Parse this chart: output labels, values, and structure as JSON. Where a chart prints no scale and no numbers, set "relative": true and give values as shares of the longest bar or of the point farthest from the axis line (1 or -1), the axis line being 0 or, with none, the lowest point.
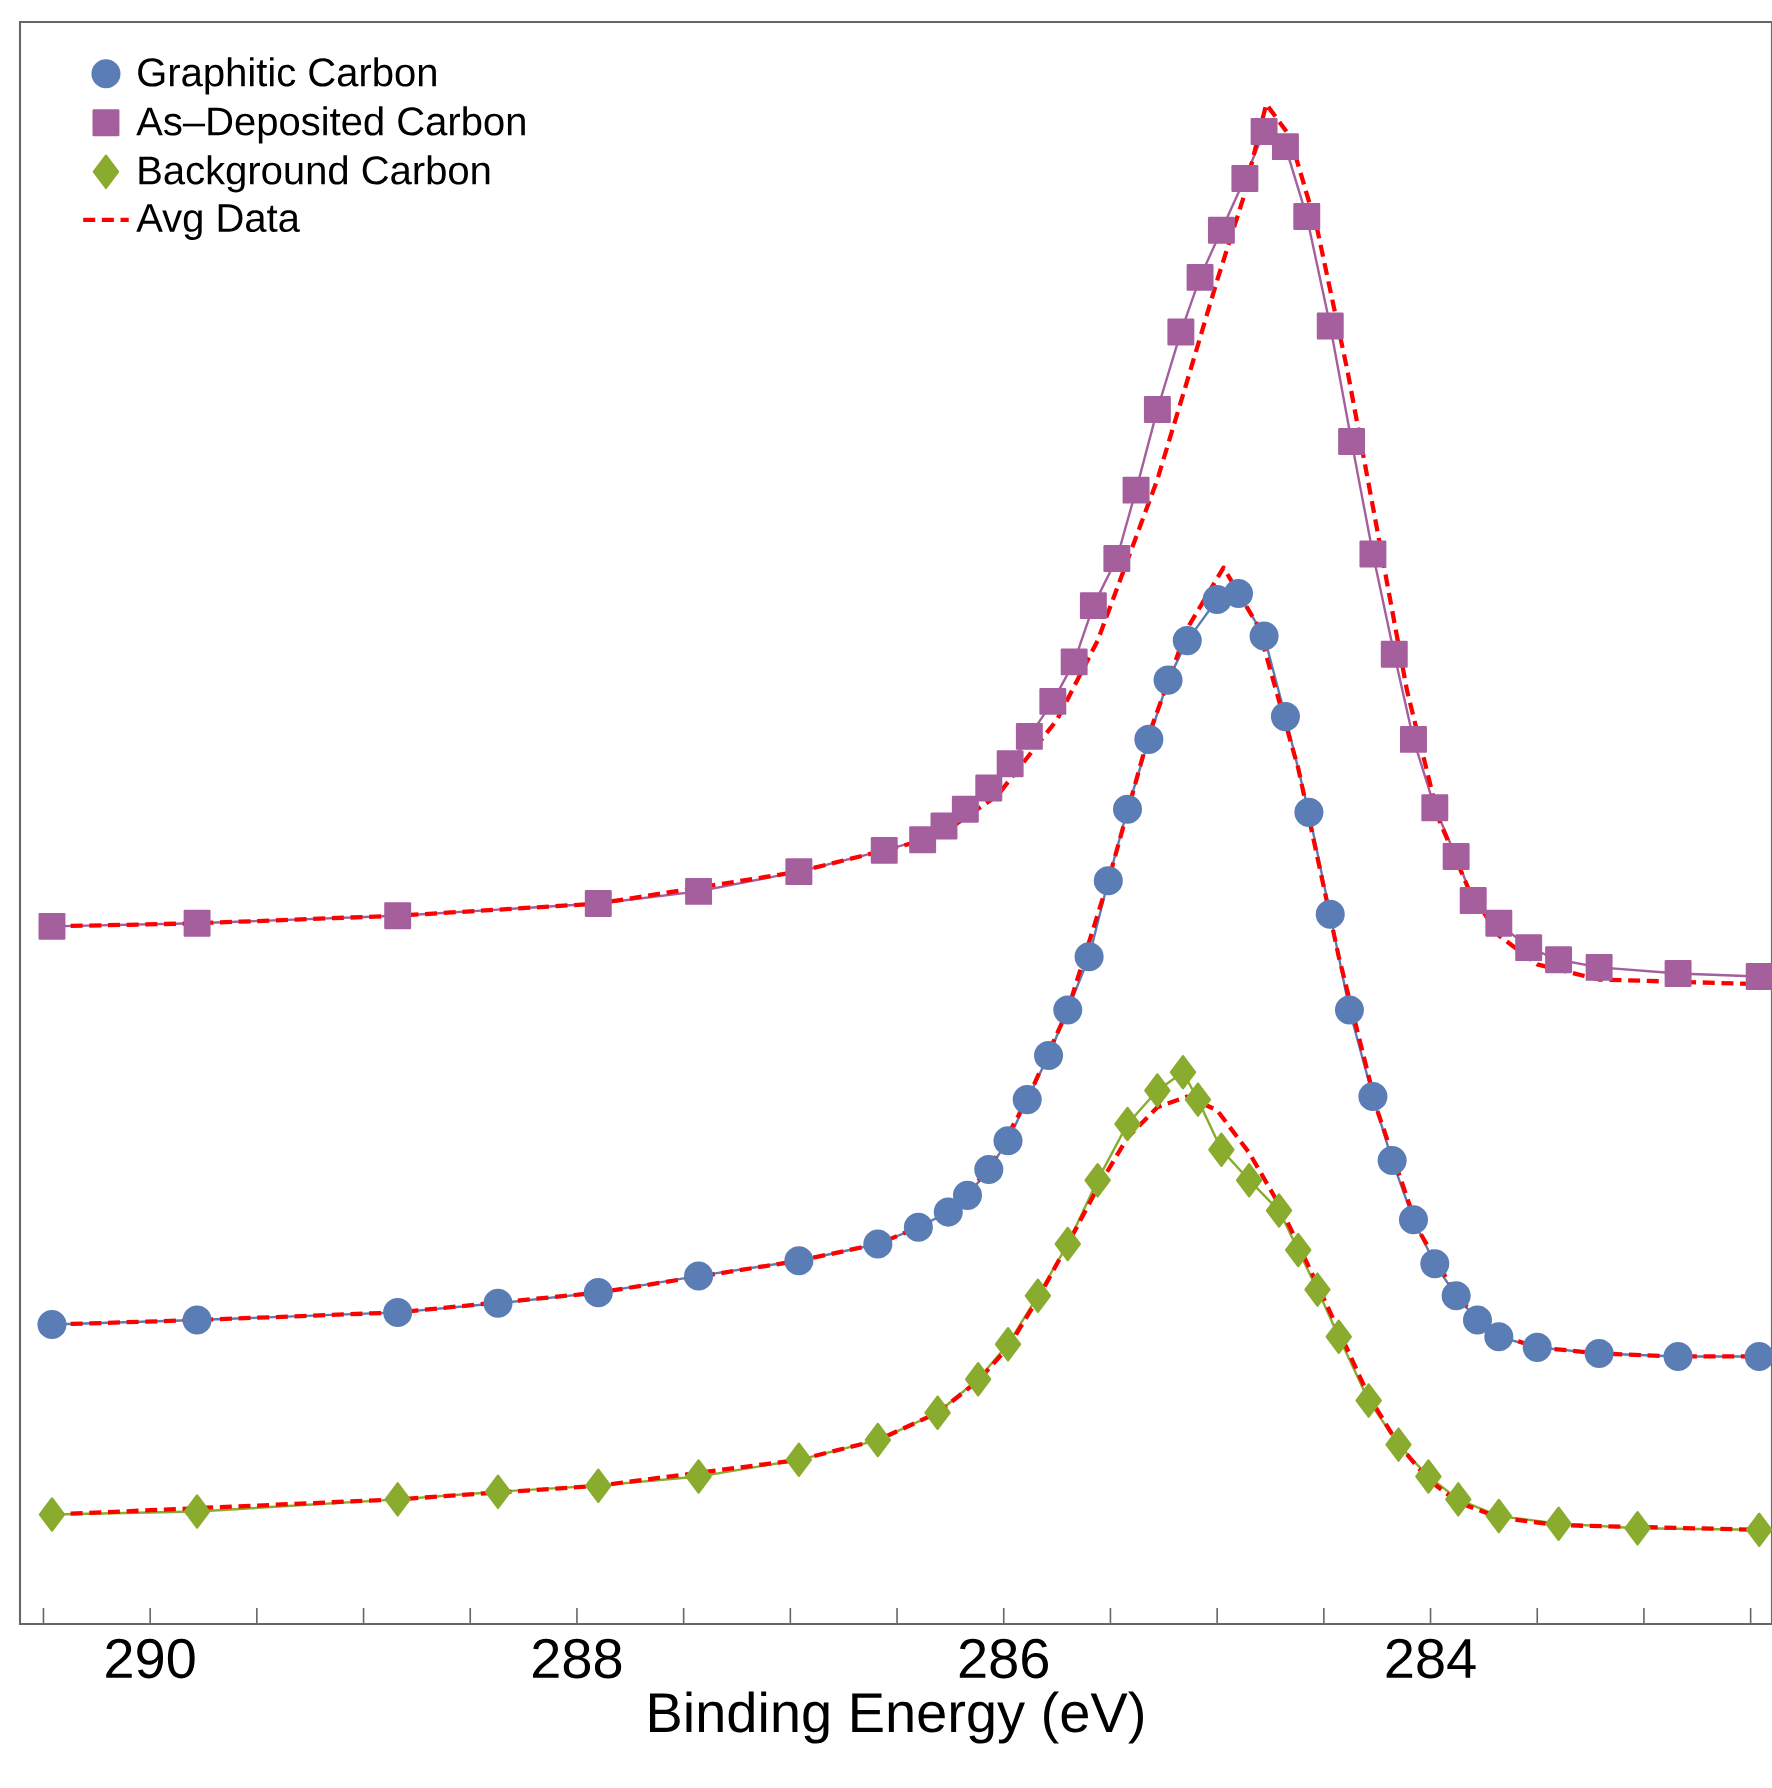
{
  "chart_data": {
    "type": "line",
    "relative": true,
    "xlabel": "Binding Energy (eV)",
    "legend": "top left",
    "grid": false,
    "xlim": [
      290.61,
      282.4
    ],
    "xticks": [
      {
        "value": 290.5,
        "label": null
      },
      290,
      {
        "value": 289.5,
        "label": null
      },
      {
        "value": 289,
        "label": null
      },
      {
        "value": 288.5,
        "label": null
      },
      288,
      {
        "value": 287.5,
        "label": null
      },
      {
        "value": 287,
        "label": null
      },
      {
        "value": 286.5,
        "label": null
      },
      286,
      {
        "value": 285.5,
        "label": null
      },
      {
        "value": 285,
        "label": null
      },
      {
        "value": 284.5,
        "label": null
      },
      284,
      {
        "value": 283.5,
        "label": null
      },
      {
        "value": 283,
        "label": null
      },
      {
        "value": 282.5,
        "label": null
      }
    ],
    "series": [
      {
        "name": "Graphitic Carbon",
        "color": "#5b7db5",
        "marker": "circle",
        "x": [
          290.46,
          289.78,
          288.84,
          288.37,
          287.9,
          287.43,
          286.96,
          286.59,
          286.4,
          286.26,
          286.17,
          286.07,
          285.98,
          285.89,
          285.79,
          285.7,
          285.6,
          285.51,
          285.42,
          285.32,
          285.23,
          285.14,
          285.0,
          284.9,
          284.78,
          284.68,
          284.57,
          284.47,
          284.38,
          284.27,
          284.18,
          284.08,
          283.98,
          283.88,
          283.78,
          283.68,
          283.5,
          283.21,
          282.84,
          282.46
        ],
        "values": [
          0.197,
          0.2,
          0.205,
          0.211,
          0.218,
          0.229,
          0.239,
          0.25,
          0.261,
          0.271,
          0.282,
          0.299,
          0.318,
          0.345,
          0.374,
          0.404,
          0.439,
          0.489,
          0.536,
          0.582,
          0.621,
          0.647,
          0.674,
          0.678,
          0.65,
          0.597,
          0.534,
          0.467,
          0.404,
          0.347,
          0.305,
          0.266,
          0.237,
          0.216,
          0.2,
          0.189,
          0.182,
          0.178,
          0.176,
          0.176
        ]
      },
      {
        "name": "As–Deposited Carbon",
        "color": "#a55f9d",
        "marker": "square",
        "x": [
          290.46,
          289.78,
          288.84,
          287.9,
          287.43,
          286.96,
          286.56,
          286.38,
          286.28,
          286.18,
          286.07,
          285.97,
          285.88,
          285.77,
          285.67,
          285.58,
          285.47,
          285.38,
          285.28,
          285.17,
          285.08,
          284.98,
          284.87,
          284.78,
          284.68,
          284.58,
          284.47,
          284.37,
          284.27,
          284.17,
          284.08,
          283.98,
          283.88,
          283.8,
          283.68,
          283.54,
          283.4,
          283.21,
          282.84,
          282.46
        ],
        "values": [
          0.459,
          0.461,
          0.466,
          0.474,
          0.482,
          0.495,
          0.509,
          0.516,
          0.525,
          0.536,
          0.55,
          0.566,
          0.584,
          0.607,
          0.633,
          0.67,
          0.701,
          0.746,
          0.799,
          0.85,
          0.886,
          0.917,
          0.951,
          0.982,
          0.972,
          0.926,
          0.854,
          0.778,
          0.704,
          0.638,
          0.582,
          0.537,
          0.505,
          0.476,
          0.461,
          0.445,
          0.437,
          0.432,
          0.428,
          0.426
        ]
      },
      {
        "name": "Background Carbon",
        "color": "#8aac2e",
        "marker": "diamond",
        "x": [
          290.46,
          289.78,
          288.84,
          288.37,
          287.9,
          287.43,
          286.96,
          286.59,
          286.31,
          286.12,
          285.98,
          285.84,
          285.7,
          285.56,
          285.42,
          285.28,
          285.16,
          285.09,
          284.98,
          284.85,
          284.71,
          284.62,
          284.53,
          284.43,
          284.29,
          284.15,
          284.01,
          283.87,
          283.68,
          283.4,
          283.03,
          282.46
        ],
        "values": [
          0.072,
          0.074,
          0.082,
          0.087,
          0.091,
          0.097,
          0.108,
          0.121,
          0.139,
          0.161,
          0.184,
          0.216,
          0.25,
          0.292,
          0.329,
          0.351,
          0.363,
          0.345,
          0.312,
          0.292,
          0.272,
          0.246,
          0.22,
          0.189,
          0.147,
          0.118,
          0.097,
          0.082,
          0.071,
          0.066,
          0.063,
          0.062
        ]
      },
      {
        "name": "Avg Data",
        "color": "#ff0000",
        "marker": "none",
        "line_style": "dashed",
        "x": [
          290.46,
          289.78,
          288.84,
          287.9,
          286.96,
          286.59,
          286.4,
          286.26,
          286.07,
          285.89,
          285.7,
          285.51,
          285.32,
          285.14,
          284.97,
          284.81,
          284.62,
          284.43,
          284.25,
          284.06,
          283.87,
          283.68,
          283.5,
          283.21,
          282.84,
          282.46
        ],
        "values": [
          0.197,
          0.2,
          0.205,
          0.218,
          0.239,
          0.25,
          0.261,
          0.271,
          0.299,
          0.345,
          0.404,
          0.489,
          0.585,
          0.655,
          0.695,
          0.657,
          0.563,
          0.439,
          0.338,
          0.26,
          0.214,
          0.19,
          0.182,
          0.178,
          0.176,
          0.176
        ]
      },
      {
        "color": "#ff0000",
        "marker": "none",
        "line_style": "dashed",
        "x": [
          290.46,
          289.78,
          288.84,
          287.9,
          286.96,
          286.56,
          286.31,
          286.03,
          285.75,
          285.56,
          285.42,
          285.28,
          285.14,
          285.0,
          284.88,
          284.77,
          284.66,
          284.53,
          284.39,
          284.25,
          284.11,
          283.96,
          283.82,
          283.68,
          283.5,
          283.21,
          282.46
        ],
        "values": [
          0.459,
          0.461,
          0.466,
          0.474,
          0.495,
          0.509,
          0.518,
          0.545,
          0.595,
          0.647,
          0.7,
          0.753,
          0.818,
          0.884,
          0.937,
          1.0,
          0.979,
          0.917,
          0.825,
          0.72,
          0.614,
          0.529,
          0.483,
          0.453,
          0.434,
          0.424,
          0.421
        ]
      },
      {
        "color": "#ff0000",
        "marker": "none",
        "line_style": "dashed",
        "x": [
          290.46,
          288.84,
          287.9,
          286.96,
          286.59,
          286.31,
          286.12,
          285.98,
          285.84,
          285.7,
          285.56,
          285.42,
          285.28,
          285.14,
          285.0,
          284.85,
          284.71,
          284.57,
          284.43,
          284.29,
          284.15,
          284.01,
          283.87,
          283.68,
          283.4,
          282.46
        ],
        "values": [
          0.072,
          0.082,
          0.091,
          0.108,
          0.121,
          0.139,
          0.16,
          0.182,
          0.214,
          0.25,
          0.287,
          0.32,
          0.34,
          0.347,
          0.338,
          0.31,
          0.276,
          0.235,
          0.193,
          0.15,
          0.118,
          0.095,
          0.08,
          0.07,
          0.065,
          0.062
        ]
      }
    ]
  }
}
